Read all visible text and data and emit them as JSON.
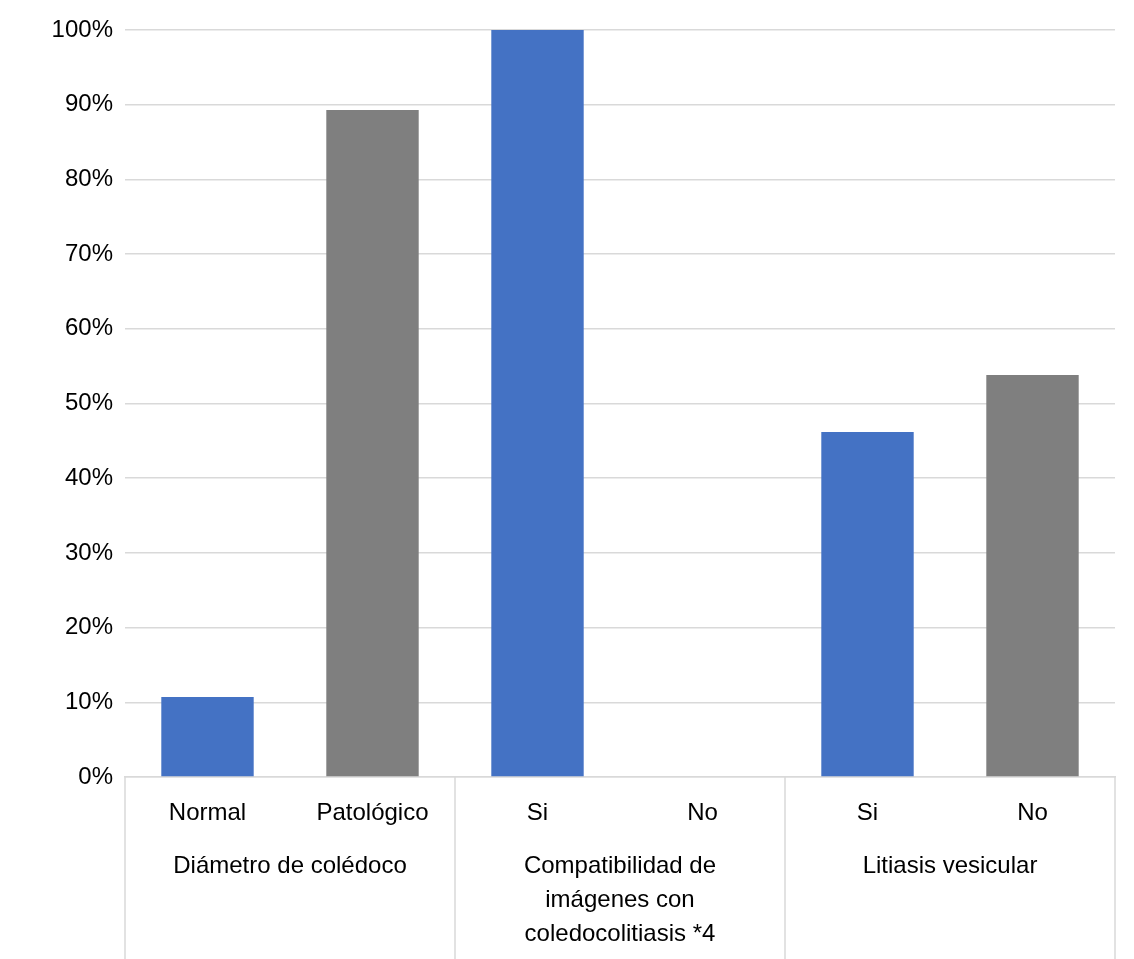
{
  "chart_data": {
    "type": "bar",
    "categories": [
      "Normal",
      "Patológico",
      "Si",
      "No",
      "Si",
      "No"
    ],
    "values": [
      10.7,
      89.3,
      100,
      0,
      46.2,
      53.8
    ],
    "colors": [
      "#4472c4",
      "#7f7f7f",
      "#4472c4",
      "#7f7f7f",
      "#4472c4",
      "#7f7f7f"
    ],
    "ylim": [
      0,
      100
    ],
    "yticks": [
      {
        "value": 0,
        "label": "0%"
      },
      {
        "value": 10,
        "label": "10%"
      },
      {
        "value": 20,
        "label": "20%"
      },
      {
        "value": 30,
        "label": "30%"
      },
      {
        "value": 40,
        "label": "40%"
      },
      {
        "value": 50,
        "label": "50%"
      },
      {
        "value": 60,
        "label": "60%"
      },
      {
        "value": 70,
        "label": "70%"
      },
      {
        "value": 80,
        "label": "80%"
      },
      {
        "value": 90,
        "label": "90%"
      },
      {
        "value": 100,
        "label": "100%"
      }
    ],
    "grid": "y",
    "legend": false,
    "annotations": [
      "Diámetro de colédoco",
      "Compatibilidad de imágenes con coledocolitiasis *4",
      "Litiasis vesicular"
    ]
  }
}
